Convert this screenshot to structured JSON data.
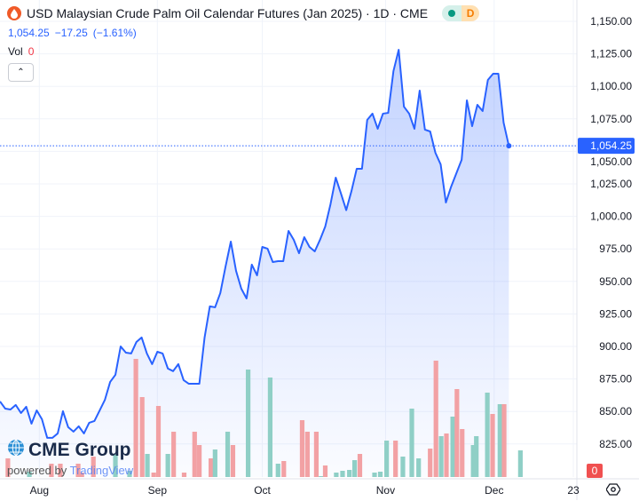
{
  "header": {
    "title": "USD Malaysian Crude Palm Oil Calendar Futures (Jan 2025) · 1D · CME",
    "status_badge_dot": "market-status-icon",
    "delay_badge": "D",
    "last_price": "1,054.25",
    "change": "−17.25",
    "change_pct": "(−1.61%)",
    "vol_label": "Vol",
    "vol_value": "0"
  },
  "logo": {
    "brand": "CME Group",
    "powered_by": "powered by",
    "platform": "TradingView"
  },
  "colors": {
    "line": "#2962ff",
    "up": "#8fcfc6",
    "down": "#f2a1a4",
    "last_label": "#2962ff",
    "vol_label": "#f05050"
  },
  "chart_data": {
    "type": "line",
    "title": "USD Malaysian Crude Palm Oil Calendar Futures (Jan 2025)",
    "ylim": [
      800,
      1150
    ],
    "y_ticks": [
      "825.00",
      "850.00",
      "875.00",
      "900.00",
      "925.00",
      "950.00",
      "975.00",
      "1,000.00",
      "1,025.00",
      "1,050.00",
      "1,075.00",
      "1,100.00",
      "1,125.00",
      "1,150.00"
    ],
    "y_tick_values": [
      825,
      850,
      875,
      900,
      925,
      950,
      975,
      1000,
      1025,
      1050,
      1075,
      1100,
      1125,
      1150
    ],
    "x_ticks": [
      {
        "label": "Aug",
        "i": 7.5
      },
      {
        "label": "Sep",
        "i": 30
      },
      {
        "label": "Oct",
        "i": 50
      },
      {
        "label": "Nov",
        "i": 73.5
      },
      {
        "label": "Dec",
        "i": 94.2
      },
      {
        "label": "23",
        "i": 109.3
      }
    ],
    "n_slots": 102,
    "last_value_label": "1,054.25",
    "volume_label": "0",
    "close": [
      857.7,
      852.2,
      851.5,
      855.0,
      848.8,
      853.6,
      840.6,
      850.8,
      844.0,
      829.7,
      829.7,
      833.1,
      850.2,
      837.9,
      834.5,
      838.6,
      833.1,
      841.3,
      842.7,
      850.8,
      859.0,
      872.7,
      878.2,
      900.0,
      895.2,
      894.6,
      903.4,
      906.9,
      894.6,
      886.4,
      895.9,
      894.6,
      883.0,
      881.0,
      886.4,
      874.1,
      871.3,
      871.3,
      871.3,
      906.9,
      930.8,
      930.1,
      941.1,
      961.5,
      980.6,
      958.1,
      944.4,
      936.9,
      962.9,
      954.7,
      976.5,
      975.2,
      964.9,
      965.6,
      965.6,
      988.8,
      982.0,
      971.7,
      984.0,
      976.5,
      973.1,
      982.0,
      992.2,
      1009.3,
      1029.8,
      1017.5,
      1004.8,
      1019.5,
      1036.6,
      1036.6,
      1074.2,
      1079.0,
      1067.4,
      1079.0,
      1079.6,
      1111.7,
      1128.1,
      1084.4,
      1079.0,
      1067.4,
      1096.7,
      1066.7,
      1065.3,
      1048.9,
      1040.0,
      1010.7,
      1022.9,
      1033.2,
      1043.5,
      1089.2,
      1069.4,
      1085.8,
      1081.0,
      1104.9,
      1109.7,
      1109.7,
      1072.1,
      1054.25
    ],
    "volume": [
      {
        "i": 1.5,
        "v": 21,
        "dir": "down"
      },
      {
        "i": 5.6,
        "v": 6,
        "dir": "up"
      },
      {
        "i": 9.8,
        "v": 15,
        "dir": "down"
      },
      {
        "i": 11.5,
        "v": 15,
        "dir": "down"
      },
      {
        "i": 14.9,
        "v": 15,
        "dir": "down"
      },
      {
        "i": 15.6,
        "v": 5,
        "dir": "down"
      },
      {
        "i": 17.8,
        "v": 23,
        "dir": "down"
      },
      {
        "i": 22,
        "v": 26,
        "dir": "up"
      },
      {
        "i": 24.7,
        "v": 7,
        "dir": "up"
      },
      {
        "i": 25.9,
        "v": 133,
        "dir": "down"
      },
      {
        "i": 27.1,
        "v": 90,
        "dir": "down"
      },
      {
        "i": 28.1,
        "v": 26,
        "dir": "up"
      },
      {
        "i": 29.3,
        "v": 5,
        "dir": "down"
      },
      {
        "i": 30.2,
        "v": 80,
        "dir": "down"
      },
      {
        "i": 32,
        "v": 26,
        "dir": "up"
      },
      {
        "i": 33.1,
        "v": 51,
        "dir": "down"
      },
      {
        "i": 35.1,
        "v": 5,
        "dir": "down"
      },
      {
        "i": 37.1,
        "v": 51,
        "dir": "down"
      },
      {
        "i": 38,
        "v": 36,
        "dir": "down"
      },
      {
        "i": 40.2,
        "v": 21,
        "dir": "down"
      },
      {
        "i": 41,
        "v": 31,
        "dir": "up"
      },
      {
        "i": 43.4,
        "v": 51,
        "dir": "up"
      },
      {
        "i": 44.4,
        "v": 36,
        "dir": "down"
      },
      {
        "i": 47.3,
        "v": 121,
        "dir": "up"
      },
      {
        "i": 51.5,
        "v": 112,
        "dir": "up"
      },
      {
        "i": 53,
        "v": 15,
        "dir": "up"
      },
      {
        "i": 54.1,
        "v": 18,
        "dir": "down"
      },
      {
        "i": 57.6,
        "v": 64,
        "dir": "down"
      },
      {
        "i": 58.6,
        "v": 51,
        "dir": "down"
      },
      {
        "i": 60.3,
        "v": 51,
        "dir": "down"
      },
      {
        "i": 61.2,
        "v": 1,
        "dir": "up"
      },
      {
        "i": 62,
        "v": 13,
        "dir": "down"
      },
      {
        "i": 64.1,
        "v": 5,
        "dir": "up"
      },
      {
        "i": 65.3,
        "v": 7,
        "dir": "up"
      },
      {
        "i": 66.6,
        "v": 8,
        "dir": "up"
      },
      {
        "i": 67.6,
        "v": 19,
        "dir": "up"
      },
      {
        "i": 68.6,
        "v": 26,
        "dir": "down"
      },
      {
        "i": 71.4,
        "v": 5,
        "dir": "up"
      },
      {
        "i": 72.5,
        "v": 6,
        "dir": "up"
      },
      {
        "i": 73.7,
        "v": 41,
        "dir": "up"
      },
      {
        "i": 75.4,
        "v": 41,
        "dir": "down"
      },
      {
        "i": 76.8,
        "v": 23,
        "dir": "up"
      },
      {
        "i": 78.5,
        "v": 77,
        "dir": "up"
      },
      {
        "i": 79.8,
        "v": 21,
        "dir": "up"
      },
      {
        "i": 82,
        "v": 32,
        "dir": "down"
      },
      {
        "i": 83.1,
        "v": 131,
        "dir": "down"
      },
      {
        "i": 84.1,
        "v": 46,
        "dir": "up"
      },
      {
        "i": 85.1,
        "v": 49,
        "dir": "down"
      },
      {
        "i": 86.3,
        "v": 68,
        "dir": "up"
      },
      {
        "i": 87.1,
        "v": 99,
        "dir": "down"
      },
      {
        "i": 88.1,
        "v": 54,
        "dir": "down"
      },
      {
        "i": 90.2,
        "v": 36,
        "dir": "up"
      },
      {
        "i": 90.8,
        "v": 46,
        "dir": "up"
      },
      {
        "i": 92.9,
        "v": 95,
        "dir": "up"
      },
      {
        "i": 93.9,
        "v": 71,
        "dir": "down"
      },
      {
        "i": 95.3,
        "v": 82,
        "dir": "up"
      },
      {
        "i": 96.1,
        "v": 82,
        "dir": "down"
      },
      {
        "i": 99.2,
        "v": 30,
        "dir": "up"
      }
    ]
  }
}
